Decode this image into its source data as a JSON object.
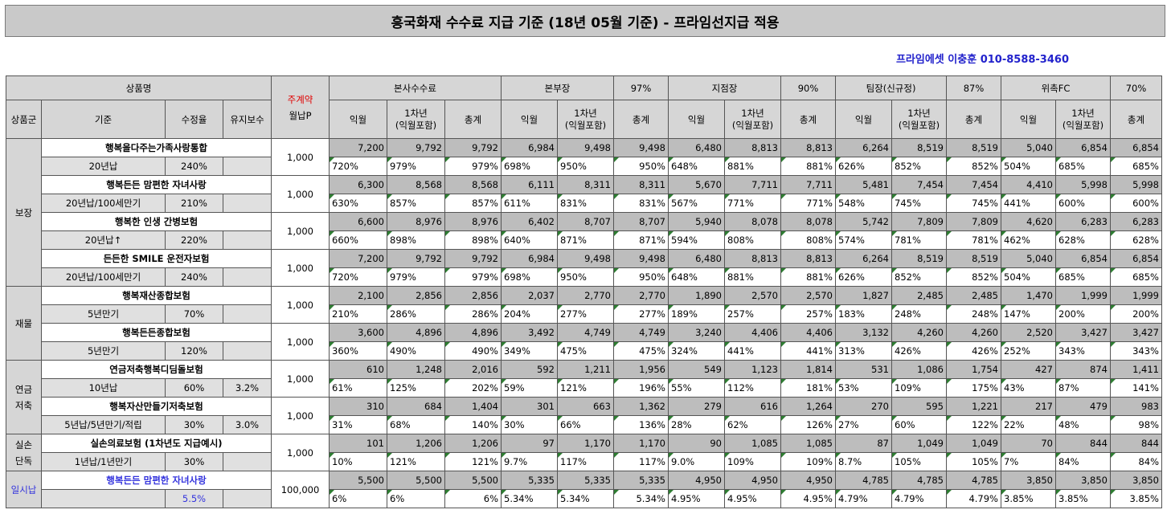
{
  "title": "흥국화재 수수료 지급 기준 (18년 05월 기준) - 프라임선지급 적용",
  "contact": "프라임에셋 이충훈 010-8588-3460",
  "headers": {
    "product": "상품명",
    "main_contract_1": "주계약",
    "main_contract_2": "월납P",
    "group": "상품군",
    "basis": "기준",
    "rate": "수정율",
    "maint": "유지보수",
    "bonsa": "본사수수료",
    "bonbu": "본부장",
    "bonbu_pct": "97%",
    "jijum": "지점장",
    "jijum_pct": "90%",
    "team": "팀장(신규정)",
    "team_pct": "87%",
    "fc": "위촉FC",
    "fc_pct": "70%",
    "c1": "익월",
    "c2a": "1차년",
    "c2b": "(익월포함)",
    "c3": "총계"
  },
  "groups": {
    "bojang": "보장",
    "jaemul": "재물",
    "yeongeum_1": "연금",
    "yeongeum_2": "저축",
    "silson_1": "실손",
    "silson_2": "단독",
    "ilsi": "일시납"
  },
  "products": [
    {
      "name": "행복을다주는가족사랑통합",
      "basis": "20년납",
      "rate": "240%",
      "maint": "",
      "premium": "1,000",
      "amt": [
        "7,200",
        "9,792",
        "9,792",
        "6,984",
        "9,498",
        "9,498",
        "6,480",
        "8,813",
        "8,813",
        "6,264",
        "8,519",
        "8,519",
        "5,040",
        "6,854",
        "6,854"
      ],
      "pct": [
        "720%",
        "979%",
        "979%",
        "698%",
        "950%",
        "950%",
        "648%",
        "881%",
        "881%",
        "626%",
        "852%",
        "852%",
        "504%",
        "685%",
        "685%"
      ]
    },
    {
      "name": "행복든든 맘편한 자녀사랑",
      "basis": "20년납/100세만기",
      "rate": "210%",
      "maint": "",
      "premium": "1,000",
      "amt": [
        "6,300",
        "8,568",
        "8,568",
        "6,111",
        "8,311",
        "8,311",
        "5,670",
        "7,711",
        "7,711",
        "5,481",
        "7,454",
        "7,454",
        "4,410",
        "5,998",
        "5,998"
      ],
      "pct": [
        "630%",
        "857%",
        "857%",
        "611%",
        "831%",
        "831%",
        "567%",
        "771%",
        "771%",
        "548%",
        "745%",
        "745%",
        "441%",
        "600%",
        "600%"
      ]
    },
    {
      "name": "행복한 인생 간병보험",
      "basis": "20년납↑",
      "rate": "220%",
      "maint": "",
      "premium": "1,000",
      "amt": [
        "6,600",
        "8,976",
        "8,976",
        "6,402",
        "8,707",
        "8,707",
        "5,940",
        "8,078",
        "8,078",
        "5,742",
        "7,809",
        "7,809",
        "4,620",
        "6,283",
        "6,283"
      ],
      "pct": [
        "660%",
        "898%",
        "898%",
        "640%",
        "871%",
        "871%",
        "594%",
        "808%",
        "808%",
        "574%",
        "781%",
        "781%",
        "462%",
        "628%",
        "628%"
      ]
    },
    {
      "name": "든든한 SMILE 운전자보험",
      "basis": "20년납/100세만기",
      "rate": "240%",
      "maint": "",
      "premium": "1,000",
      "amt": [
        "7,200",
        "9,792",
        "9,792",
        "6,984",
        "9,498",
        "9,498",
        "6,480",
        "8,813",
        "8,813",
        "6,264",
        "8,519",
        "8,519",
        "5,040",
        "6,854",
        "6,854"
      ],
      "pct": [
        "720%",
        "979%",
        "979%",
        "698%",
        "950%",
        "950%",
        "648%",
        "881%",
        "881%",
        "626%",
        "852%",
        "852%",
        "504%",
        "685%",
        "685%"
      ]
    },
    {
      "name": "행복재산종합보험",
      "basis": "5년만기",
      "rate": "70%",
      "maint": "",
      "premium": "1,000",
      "amt": [
        "2,100",
        "2,856",
        "2,856",
        "2,037",
        "2,770",
        "2,770",
        "1,890",
        "2,570",
        "2,570",
        "1,827",
        "2,485",
        "2,485",
        "1,470",
        "1,999",
        "1,999"
      ],
      "pct": [
        "210%",
        "286%",
        "286%",
        "204%",
        "277%",
        "277%",
        "189%",
        "257%",
        "257%",
        "183%",
        "248%",
        "248%",
        "147%",
        "200%",
        "200%"
      ]
    },
    {
      "name": "행복든든종합보험",
      "basis": "5년만기",
      "rate": "120%",
      "maint": "",
      "premium": "1,000",
      "amt": [
        "3,600",
        "4,896",
        "4,896",
        "3,492",
        "4,749",
        "4,749",
        "3,240",
        "4,406",
        "4,406",
        "3,132",
        "4,260",
        "4,260",
        "2,520",
        "3,427",
        "3,427"
      ],
      "pct": [
        "360%",
        "490%",
        "490%",
        "349%",
        "475%",
        "475%",
        "324%",
        "441%",
        "441%",
        "313%",
        "426%",
        "426%",
        "252%",
        "343%",
        "343%"
      ]
    },
    {
      "name": "연금저축행복디딤돌보험",
      "basis": "10년납",
      "rate": "60%",
      "maint": "3.2%",
      "premium": "1,000",
      "amt": [
        "610",
        "1,248",
        "2,016",
        "592",
        "1,211",
        "1,956",
        "549",
        "1,123",
        "1,814",
        "531",
        "1,086",
        "1,754",
        "427",
        "874",
        "1,411"
      ],
      "pct": [
        "61%",
        "125%",
        "202%",
        "59%",
        "121%",
        "196%",
        "55%",
        "112%",
        "181%",
        "53%",
        "109%",
        "175%",
        "43%",
        "87%",
        "141%"
      ]
    },
    {
      "name": "행복자산만들기저축보험",
      "basis": "5년납/5년만기/적립",
      "rate": "30%",
      "maint": "3.0%",
      "premium": "1,000",
      "amt": [
        "310",
        "684",
        "1,404",
        "301",
        "663",
        "1,362",
        "279",
        "616",
        "1,264",
        "270",
        "595",
        "1,221",
        "217",
        "479",
        "983"
      ],
      "pct": [
        "31%",
        "68%",
        "140%",
        "30%",
        "66%",
        "136%",
        "28%",
        "62%",
        "126%",
        "27%",
        "60%",
        "122%",
        "22%",
        "48%",
        "98%"
      ]
    },
    {
      "name": "실손의료보험 (1차년도 지급예시)",
      "basis": "1년납/1년만기",
      "rate": "30%",
      "maint": "",
      "premium": "1,000",
      "amt": [
        "101",
        "1,206",
        "1,206",
        "97",
        "1,170",
        "1,170",
        "90",
        "1,085",
        "1,085",
        "87",
        "1,049",
        "1,049",
        "70",
        "844",
        "844"
      ],
      "pct": [
        "10%",
        "121%",
        "121%",
        "9.7%",
        "117%",
        "117%",
        "9.0%",
        "109%",
        "109%",
        "8.7%",
        "105%",
        "105%",
        "7%",
        "84%",
        "84%"
      ]
    },
    {
      "name": "행복든든 맘편한 자녀사랑",
      "basis": "",
      "rate": "5.5%",
      "maint": "",
      "premium": "100,000",
      "amt": [
        "5,500",
        "5,500",
        "5,500",
        "5,335",
        "5,335",
        "5,335",
        "4,950",
        "4,950",
        "4,950",
        "4,785",
        "4,785",
        "4,785",
        "3,850",
        "3,850",
        "3,850"
      ],
      "pct": [
        "6%",
        "6%",
        "6%",
        "5.34%",
        "5.34%",
        "5.34%",
        "4.95%",
        "4.95%",
        "4.95%",
        "4.79%",
        "4.79%",
        "4.79%",
        "3.85%",
        "3.85%",
        "3.85%"
      ]
    }
  ]
}
